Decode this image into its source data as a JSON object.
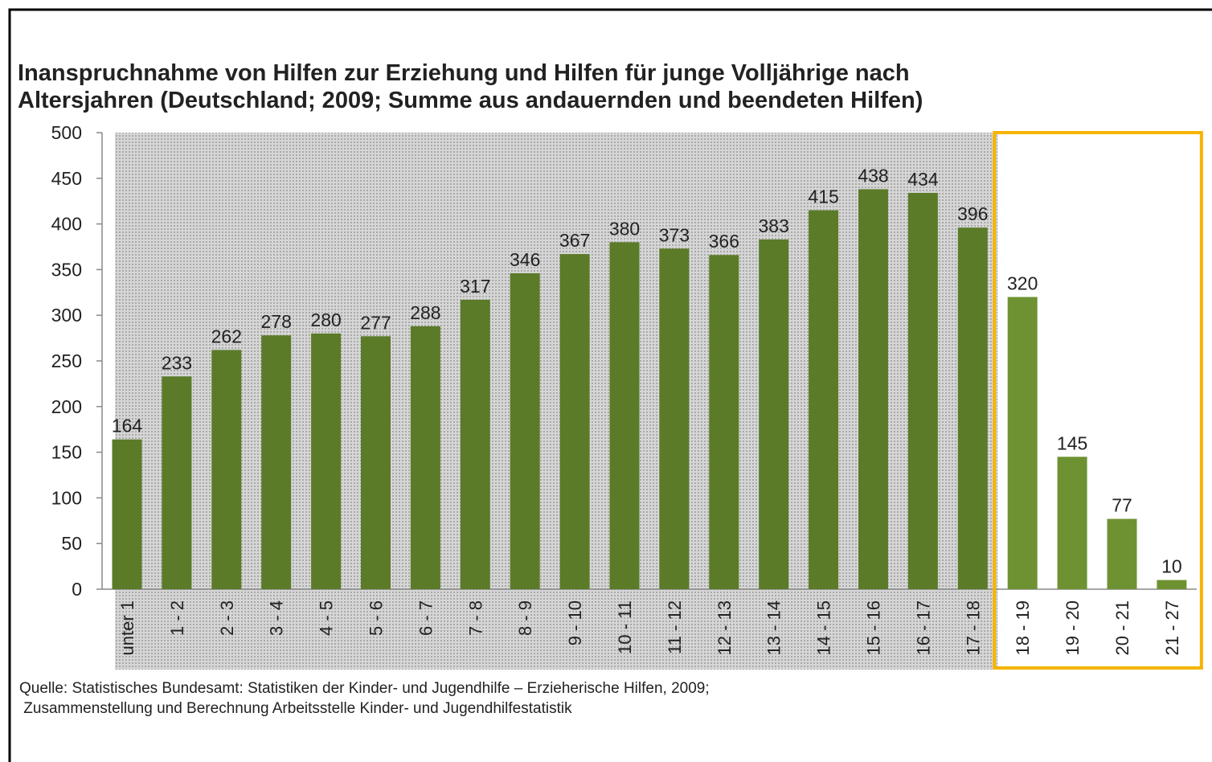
{
  "chart_data": {
    "type": "bar",
    "title": [
      "Inanspruchnahme von Hilfen zur Erziehung und Hilfen für junge Volljährige nach",
      "Altersjahren (Deutschland; 2009; Summe aus andauernden und beendeten Hilfen)"
    ],
    "categories": [
      "unter 1",
      "1 - 2",
      "2 - 3",
      "3 - 4",
      "4 - 5",
      "5 - 6",
      "6 - 7",
      "7 - 8",
      "8 - 9",
      "9 - 10",
      "10 - 11",
      "11 - 12",
      "12 - 13",
      "13 - 14",
      "14 - 15",
      "15 - 16",
      "16 - 17",
      "17 - 18",
      "18 - 19",
      "19 - 20",
      "20 - 21",
      "21 - 27"
    ],
    "values": [
      164,
      233,
      262,
      278,
      280,
      277,
      288,
      317,
      346,
      367,
      380,
      373,
      366,
      383,
      415,
      438,
      434,
      396,
      320,
      145,
      77,
      10
    ],
    "color": "#5b7b28",
    "highlight_color": "#6e9232",
    "highlight_border": "#f5b400",
    "ylim": [
      0,
      500
    ],
    "yticks": [
      0,
      50,
      100,
      150,
      200,
      250,
      300,
      350,
      400,
      450,
      500
    ],
    "source": [
      "Quelle: Statistisches Bundesamt: Statistiken der Kinder- und Jugendhilfe – Erzieherische Hilfen, 2009;",
      " Zusammenstellung und Berechnung Arbeitsstelle Kinder- und Jugendhilfestatistik"
    ]
  }
}
